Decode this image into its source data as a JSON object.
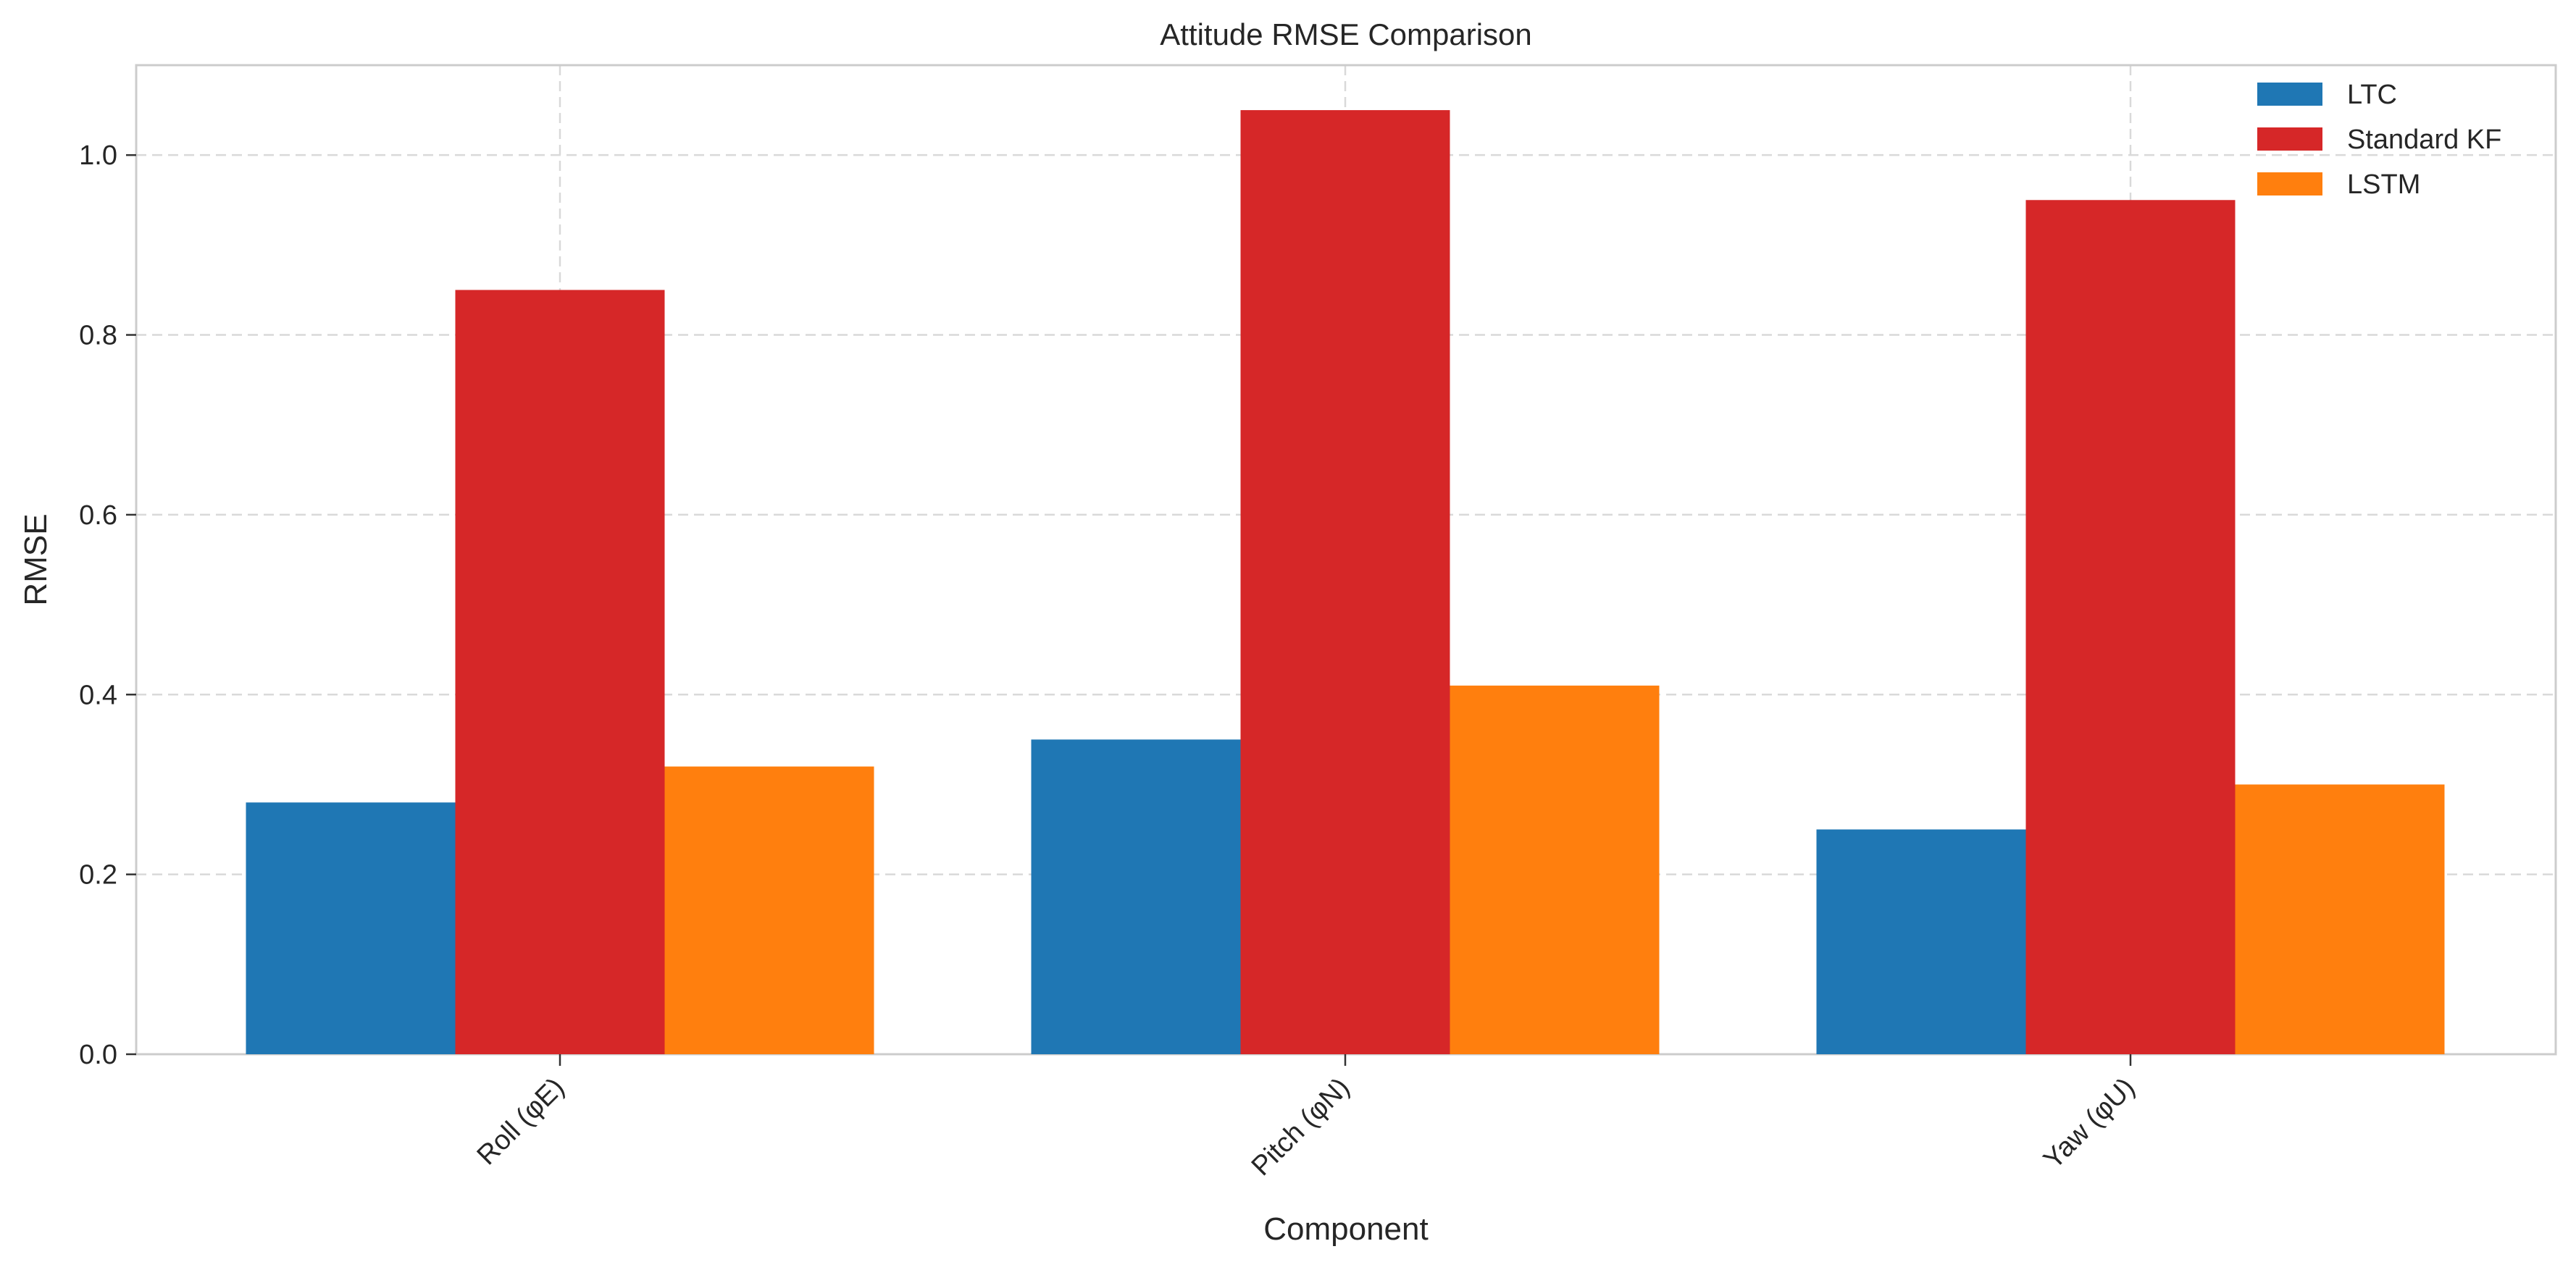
{
  "chart_data": {
    "type": "bar",
    "title": "Attitude RMSE Comparison",
    "xlabel": "Component",
    "ylabel": "RMSE",
    "categories": [
      "Roll (φE)",
      "Pitch (φN)",
      "Yaw (φU)"
    ],
    "series": [
      {
        "name": "LTC",
        "color": "#1f77b4",
        "values": [
          0.28,
          0.35,
          0.25
        ]
      },
      {
        "name": "Standard KF",
        "color": "#d62728",
        "values": [
          0.85,
          1.05,
          0.95
        ]
      },
      {
        "name": "LSTM",
        "color": "#ff7f0e",
        "values": [
          0.32,
          0.41,
          0.3
        ]
      }
    ],
    "ylim": [
      0,
      1.1
    ],
    "yticks": [
      0.0,
      0.2,
      0.4,
      0.6,
      0.8,
      1.0
    ],
    "ytick_labels": [
      "0.0",
      "0.2",
      "0.4",
      "0.6",
      "0.8",
      "1.0"
    ],
    "grid": true,
    "legend_position": "top-right"
  }
}
